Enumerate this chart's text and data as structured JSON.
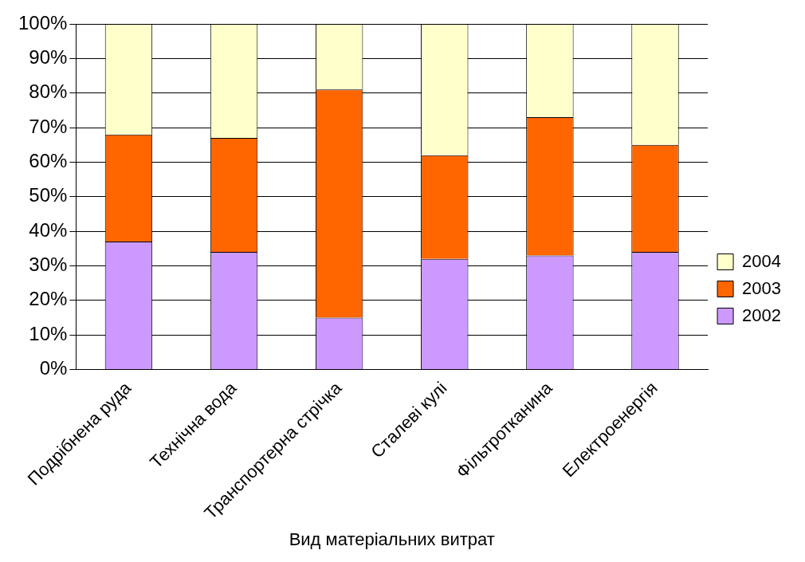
{
  "chart_data": {
    "type": "bar",
    "stacked": true,
    "xlabel": "Вид матеріальних витрат",
    "categories": [
      "Подрібнена руда",
      "Технічна вода",
      "Транспортерна стрічка",
      "Сталеві кулі",
      "Фільтротканина",
      "Електроенергія"
    ],
    "series": [
      {
        "name": "2002",
        "color": "#cc99ff",
        "values": [
          37,
          34,
          15,
          32,
          33,
          34
        ]
      },
      {
        "name": "2003",
        "color": "#ff6600",
        "values": [
          31,
          33,
          66,
          30,
          40,
          31
        ]
      },
      {
        "name": "2004",
        "color": "#ffffcc",
        "values": [
          32,
          33,
          19,
          38,
          27,
          35
        ]
      }
    ],
    "ylim": [
      0,
      100
    ],
    "yticks": [
      {
        "value": 0,
        "label": "0%"
      },
      {
        "value": 10,
        "label": "10%"
      },
      {
        "value": 20,
        "label": "20%"
      },
      {
        "value": 30,
        "label": "30%"
      },
      {
        "value": 40,
        "label": "40%"
      },
      {
        "value": 50,
        "label": "50%"
      },
      {
        "value": 60,
        "label": "60%"
      },
      {
        "value": 70,
        "label": "70%"
      },
      {
        "value": 80,
        "label": "80%"
      },
      {
        "value": 90,
        "label": "90%"
      },
      {
        "value": 100,
        "label": "100%"
      }
    ],
    "grid": "y",
    "legend": "right"
  }
}
